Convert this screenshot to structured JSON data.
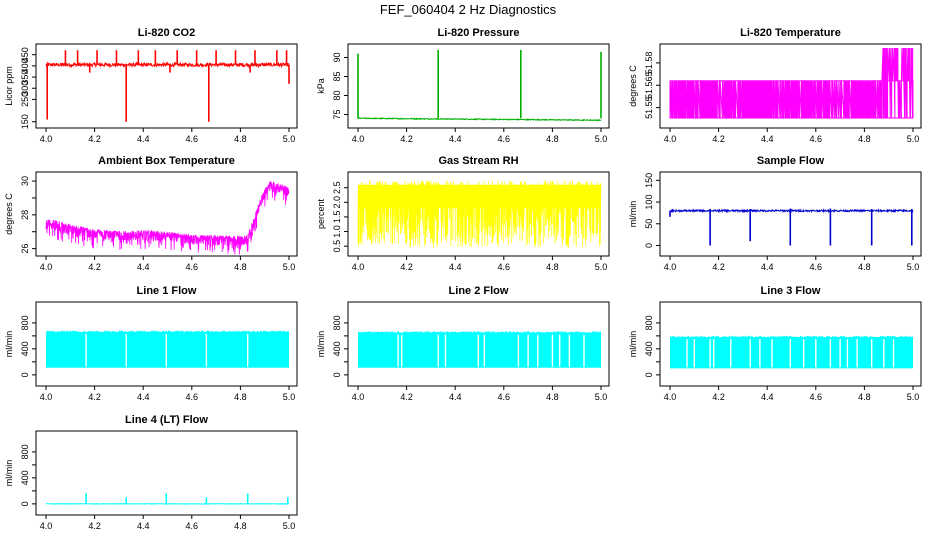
{
  "figure": {
    "title": "FEF_060404  2 Hz Diagnostics"
  },
  "chart_data": [
    {
      "type": "line",
      "title": "Li-820 CO2",
      "ylabel": "Licor ppm",
      "xlabel": "",
      "xlim": [
        4.0,
        5.0
      ],
      "xticks": [
        4.0,
        4.2,
        4.4,
        4.6,
        4.8,
        5.0
      ],
      "xtick_labels": [
        "4.0",
        "4.2",
        "4.4",
        "4.6",
        "4.8",
        "5.0"
      ],
      "ylim": [
        140,
        480
      ],
      "yticks": [
        150,
        250,
        300,
        350,
        400,
        450
      ],
      "ytick_labels": [
        "150",
        "250",
        "300",
        "350",
        "400",
        "450"
      ],
      "color": "#ff0000",
      "series": [
        {
          "name": "CO2",
          "baseline": 405,
          "noise": 8,
          "spikes_up": [
            [
              4.08,
              470
            ],
            [
              4.13,
              470
            ],
            [
              4.21,
              470
            ],
            [
              4.29,
              470
            ],
            [
              4.38,
              470
            ],
            [
              4.45,
              470
            ],
            [
              4.54,
              470
            ],
            [
              4.62,
              470
            ],
            [
              4.7,
              470
            ],
            [
              4.78,
              470
            ],
            [
              4.86,
              470
            ],
            [
              4.95,
              470
            ],
            [
              4.99,
              470
            ]
          ],
          "spikes_down": [
            [
              4.005,
              160
            ],
            [
              4.33,
              150
            ],
            [
              4.67,
              150
            ],
            [
              4.18,
              370
            ],
            [
              4.51,
              370
            ],
            [
              4.84,
              370
            ],
            [
              5.0,
              320
            ]
          ]
        }
      ]
    },
    {
      "type": "line",
      "title": "Li-820 Pressure",
      "ylabel": "kPa",
      "xlabel": "",
      "xlim": [
        4.0,
        5.0
      ],
      "xticks": [
        4.0,
        4.2,
        4.4,
        4.6,
        4.8,
        5.0
      ],
      "xtick_labels": [
        "4.0",
        "4.2",
        "4.4",
        "4.6",
        "4.8",
        "5.0"
      ],
      "ylim": [
        72.5,
        92.5
      ],
      "yticks": [
        75,
        80,
        85,
        90
      ],
      "ytick_labels": [
        "75",
        "80",
        "85",
        "90"
      ],
      "color": "#00b000",
      "series": [
        {
          "name": "Pressure",
          "start": 74.0,
          "end": 73.5,
          "noise": 0.12,
          "spikes_up": [
            [
              4.0,
              91.0
            ],
            [
              4.33,
              92.0
            ],
            [
              4.67,
              92.0
            ],
            [
              5.0,
              91.5
            ]
          ],
          "spikes_down": []
        }
      ]
    },
    {
      "type": "line",
      "title": "Li-820 Temperature",
      "ylabel": "degrees C",
      "xlabel": "",
      "xlim": [
        4.0,
        5.0
      ],
      "xticks": [
        4.0,
        4.2,
        4.4,
        4.6,
        4.8,
        5.0
      ],
      "xtick_labels": [
        "4.0",
        "4.2",
        "4.4",
        "4.6",
        "4.8",
        "5.0"
      ],
      "ylim": [
        51.539,
        51.59
      ],
      "yticks": [
        51.55,
        51.565,
        51.58
      ],
      "ytick_labels": [
        "51.55",
        "51.565",
        "51.58"
      ],
      "color": "#ff00ff",
      "series": [
        {
          "name": "Temperature",
          "low": 51.543,
          "high": 51.568,
          "top": 51.59,
          "rise_start": 4.87
        }
      ]
    },
    {
      "type": "line",
      "title": "Ambient Box Temperature",
      "ylabel": "degrees C",
      "xlabel": "",
      "xlim": [
        4.0,
        5.0
      ],
      "xticks": [
        4.0,
        4.2,
        4.4,
        4.6,
        4.8,
        5.0
      ],
      "xtick_labels": [
        "4.0",
        "4.2",
        "4.4",
        "4.6",
        "4.8",
        "5.0"
      ],
      "ylim": [
        25.8,
        30.3
      ],
      "yticks": [
        26,
        27,
        28,
        29,
        30
      ],
      "ytick_labels": [
        "26",
        "",
        "28",
        "",
        "30"
      ],
      "color": "#ff00ff",
      "series": [
        {
          "name": "Ambient",
          "points": [
            [
              4.0,
              27.5
            ],
            [
              4.05,
              27.4
            ],
            [
              4.1,
              27.2
            ],
            [
              4.2,
              26.9
            ],
            [
              4.3,
              26.8
            ],
            [
              4.4,
              26.85
            ],
            [
              4.5,
              26.75
            ],
            [
              4.6,
              26.6
            ],
            [
              4.7,
              26.55
            ],
            [
              4.8,
              26.5
            ],
            [
              4.83,
              26.6
            ],
            [
              4.86,
              27.8
            ],
            [
              4.89,
              29.0
            ],
            [
              4.92,
              29.8
            ],
            [
              4.96,
              29.6
            ],
            [
              5.0,
              29.4
            ]
          ],
          "noise_down": 0.9,
          "noise_up": 0.25
        }
      ]
    },
    {
      "type": "line",
      "title": "Gas Stream RH",
      "ylabel": "percent",
      "xlabel": "",
      "xlim": [
        4.0,
        5.0
      ],
      "xticks": [
        4.0,
        4.2,
        4.4,
        4.6,
        4.8,
        5.0
      ],
      "xtick_labels": [
        "4.0",
        "4.2",
        "4.4",
        "4.6",
        "4.8",
        "5.0"
      ],
      "ylim": [
        0.3,
        2.9
      ],
      "yticks": [
        0.5,
        1.0,
        1.5,
        2.0,
        2.5
      ],
      "ytick_labels": [
        "0.5",
        "1.0",
        "1.5",
        "2.0",
        "2.5"
      ],
      "color": "#ffff00",
      "series": [
        {
          "name": "RH",
          "band_low": 0.45,
          "band_high": 2.75,
          "dense_low": 1.8,
          "dense_high": 2.6
        }
      ]
    },
    {
      "type": "line",
      "title": "Sample Flow",
      "ylabel": "ml/min",
      "xlabel": "",
      "xlim": [
        4.0,
        5.0
      ],
      "xticks": [
        4.0,
        4.2,
        4.4,
        4.6,
        4.8,
        5.0
      ],
      "xtick_labels": [
        "4.0",
        "4.2",
        "4.4",
        "4.6",
        "4.8",
        "5.0"
      ],
      "ylim": [
        -15,
        160
      ],
      "yticks": [
        0,
        50,
        100,
        150
      ],
      "ytick_labels": [
        "0",
        "50",
        "100",
        "150"
      ],
      "color": "#0000cc",
      "series": [
        {
          "name": "Sample",
          "baseline": 80,
          "noise": 2,
          "spikes_up": [
            [
              4.165,
              84
            ],
            [
              4.33,
              84
            ],
            [
              4.495,
              85
            ],
            [
              4.66,
              85
            ],
            [
              4.83,
              84
            ],
            [
              4.995,
              84
            ]
          ],
          "spikes_down": [
            [
              4.0,
              66
            ],
            [
              4.165,
              0
            ],
            [
              4.33,
              10
            ],
            [
              4.495,
              0
            ],
            [
              4.66,
              0
            ],
            [
              4.83,
              0
            ],
            [
              4.995,
              0
            ]
          ]
        }
      ]
    },
    {
      "type": "line",
      "title": "Line 1 Flow",
      "ylabel": "ml/min",
      "xlabel": "",
      "xlim": [
        4.0,
        5.0
      ],
      "xticks": [
        4.0,
        4.2,
        4.4,
        4.6,
        4.8,
        5.0
      ],
      "xtick_labels": [
        "4.0",
        "4.2",
        "4.4",
        "4.6",
        "4.8",
        "5.0"
      ],
      "ylim": [
        -110,
        1060
      ],
      "yticks": [
        0,
        200,
        400,
        600,
        800
      ],
      "ytick_labels": [
        "0",
        "",
        "400",
        "",
        "800"
      ],
      "color": "#00ffff",
      "series": [
        {
          "name": "Line 1",
          "band_low": 110,
          "band_high": 660,
          "gaps": [
            4.165,
            4.33,
            4.495,
            4.66,
            4.83
          ]
        }
      ]
    },
    {
      "type": "line",
      "title": "Line 2 Flow",
      "ylabel": "ml/min",
      "xlabel": "",
      "xlim": [
        4.0,
        5.0
      ],
      "xticks": [
        4.0,
        4.2,
        4.4,
        4.6,
        4.8,
        5.0
      ],
      "xtick_labels": [
        "4.0",
        "4.2",
        "4.4",
        "4.6",
        "4.8",
        "5.0"
      ],
      "ylim": [
        -110,
        1060
      ],
      "yticks": [
        0,
        200,
        400,
        600,
        800
      ],
      "ytick_labels": [
        "0",
        "",
        "400",
        "",
        "800"
      ],
      "color": "#00ffff",
      "series": [
        {
          "name": "Line 2",
          "band_low": 110,
          "band_high": 650,
          "gaps": [
            4.165,
            4.18,
            4.33,
            4.36,
            4.495,
            4.52,
            4.66,
            4.7,
            4.74,
            4.8,
            4.83,
            4.87,
            4.93
          ]
        }
      ]
    },
    {
      "type": "line",
      "title": "Line 3 Flow",
      "ylabel": "ml/min",
      "xlabel": "",
      "xlim": [
        4.0,
        5.0
      ],
      "xticks": [
        4.0,
        4.2,
        4.4,
        4.6,
        4.8,
        5.0
      ],
      "xtick_labels": [
        "4.0",
        "4.2",
        "4.4",
        "4.6",
        "4.8",
        "5.0"
      ],
      "ylim": [
        -110,
        1060
      ],
      "yticks": [
        0,
        200,
        400,
        600,
        800
      ],
      "ytick_labels": [
        "0",
        "",
        "400",
        "",
        "800"
      ],
      "color": "#00ffff",
      "series": [
        {
          "name": "Line 3",
          "band_low": 100,
          "band_high": 580,
          "gaps": [
            4.07,
            4.1,
            4.165,
            4.18,
            4.25,
            4.33,
            4.37,
            4.42,
            4.495,
            4.55,
            4.6,
            4.66,
            4.7,
            4.73,
            4.77,
            4.83,
            4.88,
            4.92
          ]
        }
      ]
    },
    {
      "type": "line",
      "title": "Line 4 (LT) Flow",
      "ylabel": "ml/min",
      "xlabel": "",
      "xlim": [
        4.0,
        5.0
      ],
      "xticks": [
        4.0,
        4.2,
        4.4,
        4.6,
        4.8,
        5.0
      ],
      "xtick_labels": [
        "4.0",
        "4.2",
        "4.4",
        "4.6",
        "4.8",
        "5.0"
      ],
      "ylim": [
        -110,
        1060
      ],
      "yticks": [
        0,
        200,
        400,
        600,
        800
      ],
      "ytick_labels": [
        "0",
        "",
        "400",
        "",
        "800"
      ],
      "color": "#00ffff",
      "series": [
        {
          "name": "Line 4",
          "baseline": 0,
          "noise": 4,
          "spikes_up": [
            [
              4.165,
              160
            ],
            [
              4.33,
              100
            ],
            [
              4.495,
              160
            ],
            [
              4.66,
              100
            ],
            [
              4.83,
              160
            ],
            [
              4.995,
              100
            ]
          ],
          "spikes_down": []
        }
      ]
    }
  ]
}
